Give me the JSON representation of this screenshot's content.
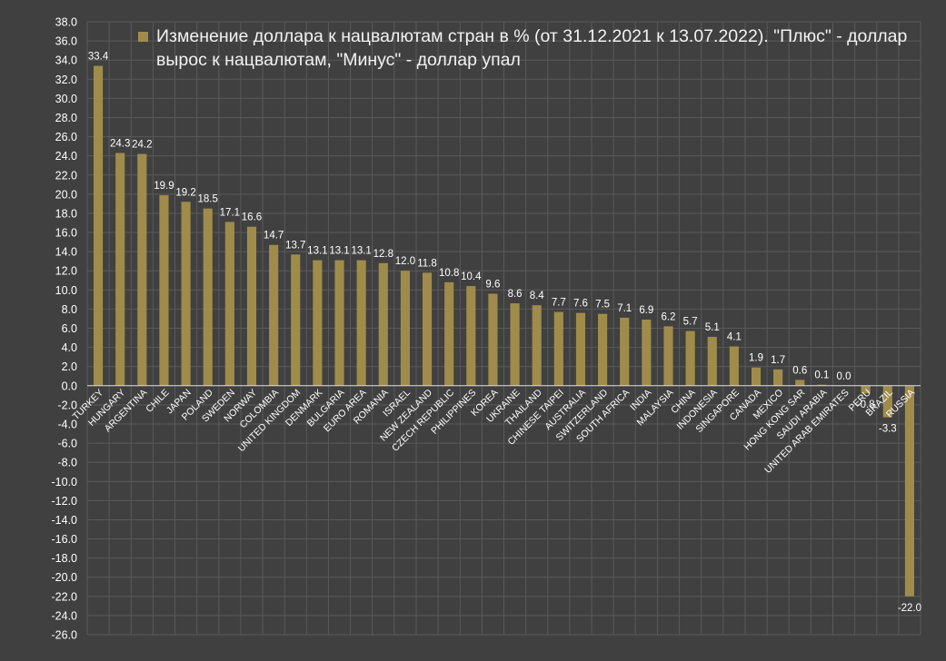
{
  "colors": {
    "background": "#404040",
    "bar": "#a08c4a",
    "grid": "#5a5a5a",
    "text": "#ffffff"
  },
  "chart_data": {
    "type": "bar",
    "title": "",
    "xlabel": "",
    "ylabel": "",
    "ylim": [
      -26,
      38
    ],
    "ytick_step": 2,
    "grid": true,
    "legend_position": "top",
    "categories": [
      "TURKEY",
      "HUNGARY",
      "ARGENTINA",
      "CHILE",
      "JAPAN",
      "POLAND",
      "SWEDEN",
      "NORWAY",
      "COLOMBIA",
      "UNITED KINGDOM",
      "DENMARK",
      "BULGARIA",
      "EURO AREA",
      "ROMANIA",
      "ISRAEL",
      "NEW ZEALAND",
      "CZECH REPUBLIC",
      "PHILIPPINES",
      "KOREA",
      "UKRAINE",
      "THAILAND",
      "CHINESE TAIPEI",
      "AUSTRALIA",
      "SWITZERLAND",
      "SOUTH AFRICA",
      "INDIA",
      "MALAYSIA",
      "CHINA",
      "INDONESIA",
      "SINGAPORE",
      "CANADA",
      "MEXICO",
      "HONG KONG SAR",
      "SAUDI ARABIA",
      "UNITED ARAB EMIRATES",
      "PERU",
      "BRAZIL",
      "RUSSIA"
    ],
    "series": [
      {
        "name": "Изменение доллара к нацвалютам стран в % (от 31.12.2021 к 13.07.2022). \"Плюс\" - доллар вырос к нацвалютам, \"Минус\" - доллар упал",
        "values": [
          33.4,
          24.3,
          24.2,
          19.9,
          19.2,
          18.5,
          17.1,
          16.6,
          14.7,
          13.7,
          13.1,
          13.1,
          13.1,
          12.8,
          12.0,
          11.8,
          10.8,
          10.4,
          9.6,
          8.6,
          8.4,
          7.7,
          7.6,
          7.5,
          7.1,
          6.9,
          6.2,
          5.7,
          5.1,
          4.1,
          1.9,
          1.7,
          0.6,
          0.1,
          0.0,
          -0.8,
          -3.3,
          -22.0
        ]
      }
    ]
  }
}
